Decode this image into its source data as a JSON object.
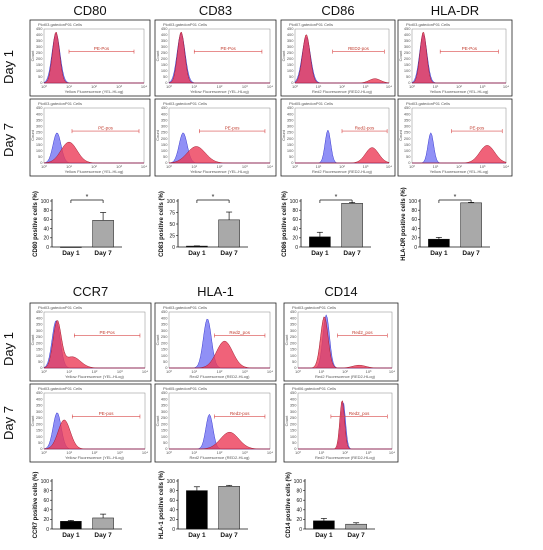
{
  "chart_data": {
    "type": "composite-figure",
    "row_labels": [
      "Day 1",
      "Day 7"
    ],
    "colors": {
      "blue": "#7d7df5",
      "red": "#ec3b58",
      "bar_day1": "#000000",
      "bar_day7": "#a9a9a9"
    },
    "histogram_panels": [
      {
        "marker": "CD80",
        "day1": {
          "header": "Plot03.gatedonP01 Cells",
          "gate": "PE-Pos",
          "xlabel": "Yellow Fluorescence (YEL-HLog)"
        },
        "day7": {
          "header": "Plot03.gatedonP01 Cells",
          "gate": "PE-pos",
          "xlabel": "Yellow Fluorescence (YEL-HLog)"
        }
      },
      {
        "marker": "CD83",
        "day1": {
          "header": "Plot03.gatedonP01 Cells",
          "gate": "PE-Pos",
          "xlabel": "Yellow Fluorescence (YEL-HLog)"
        },
        "day7": {
          "header": "Plot03.gatedonP01 Cells",
          "gate": "PE-pos",
          "xlabel": "Yellow Fluorescence (YEL-HLog)"
        }
      },
      {
        "marker": "CD86",
        "day1": {
          "header": "Plot07.gatedonP01 Cells",
          "gate": "RED2-pos",
          "xlabel": "Red2 Fluorescence (RED2-HLog)"
        },
        "day7": {
          "header": "Plot05.gatedonP01 Cells",
          "gate": "Red2-pos",
          "xlabel": "Red2 Fluorescence (RED2-HLog)"
        }
      },
      {
        "marker": "HLA-DR",
        "day1": {
          "header": "Plot03.gatedonP01 Cells",
          "gate": "PE-Pos",
          "xlabel": "Yellow Fluorescence (YEL-HLog)"
        },
        "day7": {
          "header": "Plot03.gatedonP01 Cells",
          "gate": "PE-pos",
          "xlabel": "Yellow Fluorescence (YEL-HLog)"
        }
      },
      {
        "marker": "CCR7",
        "day1": {
          "header": "Plot03.gatedonP01 Cells",
          "gate": "PE-Pos",
          "xlabel": "Yellow Fluorescence (YEL-HLog)"
        },
        "day7": {
          "header": "Plot03.gatedonP01 Cells",
          "gate": "PE-pos",
          "xlabel": "Yellow Fluorescence (YEL-HLog)"
        }
      },
      {
        "marker": "HLA-1",
        "day1": {
          "header": "Plot03.gatedonP01 Cells",
          "gate": "Red2_pos",
          "xlabel": "Red2 Fluorescence (RED2-HLog)"
        },
        "day7": {
          "header": "Plot05.gatedonP01 Cells",
          "gate": "Red2-pos",
          "xlabel": "Red2 Fluorescence (RED2-HLog)"
        }
      },
      {
        "marker": "CD14",
        "day1": {
          "header": "Plot03.gatedonP01 Cells",
          "gate": "Red2_pos",
          "xlabel": "Red2 Fluorescence (RED2-HLog)"
        },
        "day7": {
          "header": "Plot06.gatedonP01 Cells",
          "gate": "Red2_pos",
          "xlabel": "Red2 Fluorescence (RED2-HLog)"
        }
      }
    ],
    "histogram_axis": {
      "x_ticks": [
        "10⁰",
        "10¹",
        "10²",
        "10³",
        "10⁴"
      ],
      "y_ticks_top": [
        "0",
        "50",
        "100",
        "150",
        "200",
        "250",
        "300",
        "350",
        "400",
        "450"
      ],
      "ylabel": "Count"
    },
    "bar_charts": [
      {
        "type": "bar",
        "categories": [
          "Day 1",
          "Day 7"
        ],
        "values": [
          0,
          58
        ],
        "errors": [
          0,
          17
        ],
        "ylabel": "CD80 positive cells (%)",
        "ylim": [
          0,
          100
        ],
        "yticks": [
          0,
          20,
          40,
          60,
          80,
          100
        ],
        "significance": "*"
      },
      {
        "type": "bar",
        "categories": [
          "Day 1",
          "Day 7"
        ],
        "values": [
          2,
          59
        ],
        "errors": [
          0.5,
          17
        ],
        "ylabel": "CD83 positive cells (%)",
        "ylim": [
          0,
          100
        ],
        "yticks": [
          0,
          25,
          50,
          75,
          100
        ],
        "significance": "*"
      },
      {
        "type": "bar",
        "categories": [
          "Day 1",
          "Day 7"
        ],
        "values": [
          22,
          95
        ],
        "errors": [
          10,
          2
        ],
        "ylabel": "CD86 positive cells (%)",
        "ylim": [
          0,
          100
        ],
        "yticks": [
          0,
          20,
          40,
          60,
          80,
          100
        ],
        "significance": "*"
      },
      {
        "type": "bar",
        "categories": [
          "Day 1",
          "Day 7"
        ],
        "values": [
          17,
          96
        ],
        "errors": [
          4,
          1
        ],
        "ylabel": "HLA-DR positive cells (%)",
        "ylim": [
          0,
          100
        ],
        "yticks": [
          0,
          20,
          40,
          60,
          80,
          100
        ],
        "significance": "*"
      },
      {
        "type": "bar",
        "categories": [
          "Day 1",
          "Day 7"
        ],
        "values": [
          16,
          23
        ],
        "errors": [
          2,
          8
        ],
        "ylabel": "CCR7 positive cells (%)",
        "ylim": [
          0,
          100
        ],
        "yticks": [
          0,
          20,
          40,
          60,
          80,
          100
        ],
        "significance": ""
      },
      {
        "type": "bar",
        "categories": [
          "Day 1",
          "Day 7"
        ],
        "values": [
          80,
          89
        ],
        "errors": [
          8,
          2
        ],
        "ylabel": "HLA-1 positive cells (%)",
        "ylim": [
          0,
          100
        ],
        "yticks": [
          0,
          20,
          40,
          60,
          80,
          100
        ],
        "significance": ""
      },
      {
        "type": "bar",
        "categories": [
          "Day 1",
          "Day 7"
        ],
        "values": [
          17,
          10
        ],
        "errors": [
          5,
          3
        ],
        "ylabel": "CD14 positive cells (%)",
        "ylim": [
          0,
          100
        ],
        "yticks": [
          0,
          20,
          40,
          60,
          80,
          100
        ],
        "significance": ""
      }
    ]
  }
}
